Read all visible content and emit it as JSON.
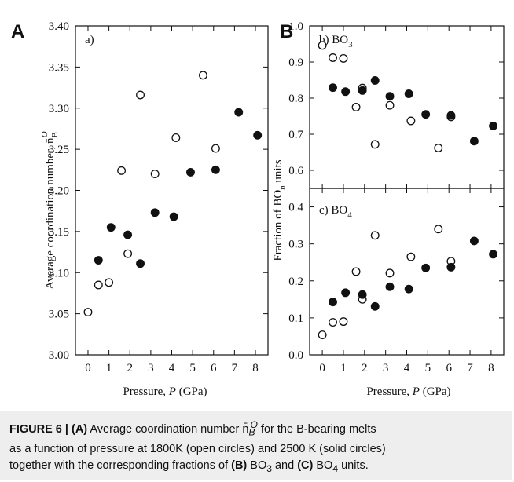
{
  "panels": {
    "A": {
      "letter": "A",
      "tag": "a)"
    },
    "B": {
      "letter": "B"
    }
  },
  "left_ylabel": "Average coordination number, n̄",
  "left_ylabel_sub": "B",
  "left_ylabel_sup": "O",
  "right_ylabel_pre": "Fraction of BO",
  "right_ylabel_sub": "n",
  "right_ylabel_post": " units",
  "xlabel_pre": "Pressure, ",
  "xlabel_var": "P",
  "xlabel_post": " (GPa)",
  "caption": {
    "figure": "FIGURE 6 | ",
    "a_tag": "(A)",
    "line1_rest": " Average coordination number n̄",
    "n_sub": "B",
    "n_sup": "O",
    "line1_end": " for the B-bearing melts",
    "line2": "as a function of pressure at 1800K (open circles) and 2500 K (solid circles)",
    "line3_pre": "together with the corresponding fractions of ",
    "b_tag": "(B)",
    "bo3_a": " BO",
    "sub3": "3",
    "and": " and ",
    "c_tag": "(C)",
    "bo4_a": " BO",
    "sub4": "4",
    "line3_end": " units."
  },
  "chart_data": [
    {
      "type": "scatter",
      "panel": "a)",
      "xlabel": "Pressure, P (GPa)",
      "ylabel": "Average coordination number, n̄_B^O",
      "xlim": [
        -0.6,
        8.6
      ],
      "ylim": [
        3.0,
        3.4
      ],
      "xticks": [
        0,
        1,
        2,
        3,
        4,
        5,
        6,
        7,
        8
      ],
      "yticks": [
        "3.00",
        "3.05",
        "3.10",
        "3.15",
        "3.20",
        "3.25",
        "3.30",
        "3.35",
        "3.40"
      ],
      "series": [
        {
          "marker": "open",
          "x": [
            0.0,
            0.5,
            1.0,
            1.6,
            1.9,
            2.5,
            3.2,
            4.2,
            5.5,
            6.1
          ],
          "y": [
            3.052,
            3.085,
            3.088,
            3.224,
            3.123,
            3.316,
            3.22,
            3.264,
            3.34,
            3.251
          ]
        },
        {
          "marker": "solid",
          "x": [
            0.5,
            1.1,
            1.9,
            2.5,
            3.2,
            4.1,
            4.9,
            6.1,
            7.2,
            8.1
          ],
          "y": [
            3.115,
            3.155,
            3.146,
            3.111,
            3.173,
            3.168,
            3.222,
            3.225,
            3.295,
            3.267
          ]
        }
      ]
    },
    {
      "type": "scatter",
      "panel": "b) BO3",
      "ylabel": "Fraction of BOn units",
      "xlim": [
        -0.6,
        8.6
      ],
      "ylim": [
        0.55,
        1.0
      ],
      "yticks": [
        "0.6",
        "0.7",
        "0.8",
        "0.9",
        "1.0"
      ],
      "series": [
        {
          "marker": "open",
          "x": [
            0.0,
            0.5,
            1.0,
            1.6,
            1.9,
            2.5,
            3.2,
            4.2,
            5.5,
            6.1
          ],
          "y": [
            0.946,
            0.912,
            0.91,
            0.775,
            0.828,
            0.672,
            0.78,
            0.737,
            0.662,
            0.748
          ]
        },
        {
          "marker": "solid",
          "x": [
            0.5,
            1.1,
            1.9,
            2.5,
            3.2,
            4.1,
            4.9,
            6.1,
            7.2,
            8.1
          ],
          "y": [
            0.829,
            0.818,
            0.821,
            0.849,
            0.805,
            0.812,
            0.755,
            0.752,
            0.681,
            0.723
          ]
        }
      ]
    },
    {
      "type": "scatter",
      "panel": "c) BO4",
      "xlabel": "Pressure, P (GPa)",
      "xlim": [
        -0.6,
        8.6
      ],
      "ylim": [
        0.0,
        0.45
      ],
      "xticks": [
        0,
        1,
        2,
        3,
        4,
        5,
        6,
        7,
        8
      ],
      "yticks": [
        "0.0",
        "0.1",
        "0.2",
        "0.3",
        "0.4"
      ],
      "series": [
        {
          "marker": "open",
          "x": [
            0.0,
            0.5,
            1.0,
            1.6,
            1.9,
            2.5,
            3.2,
            4.2,
            5.5,
            6.1
          ],
          "y": [
            0.054,
            0.088,
            0.09,
            0.225,
            0.15,
            0.323,
            0.221,
            0.265,
            0.34,
            0.253
          ]
        },
        {
          "marker": "solid",
          "x": [
            0.5,
            1.1,
            1.9,
            2.5,
            3.2,
            4.1,
            4.9,
            6.1,
            7.2,
            8.1
          ],
          "y": [
            0.143,
            0.168,
            0.163,
            0.131,
            0.184,
            0.178,
            0.235,
            0.237,
            0.308,
            0.272
          ]
        }
      ]
    }
  ]
}
